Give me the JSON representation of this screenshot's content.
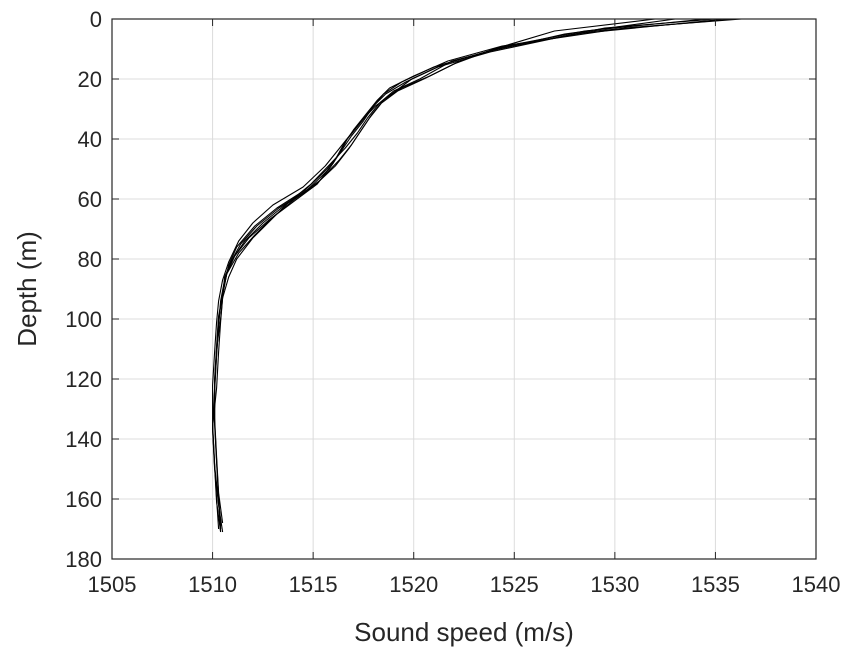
{
  "chart_data": {
    "type": "line",
    "xlabel": "Sound speed (m/s)",
    "ylabel": "Depth (m)",
    "xlim": [
      1505,
      1540
    ],
    "ylim": [
      0,
      180
    ],
    "y_reversed": true,
    "grid": true,
    "xticks": [
      "1505",
      "1510",
      "1515",
      "1520",
      "1525",
      "1530",
      "1535",
      "1540"
    ],
    "yticks": [
      "0",
      "20",
      "40",
      "60",
      "80",
      "100",
      "120",
      "140",
      "160",
      "180"
    ],
    "line_color": "#000000",
    "series": [
      {
        "x": [
          1536.3,
          1530.5,
          1524.4,
          1521.7,
          1520.0,
          1518.8,
          1518.2,
          1517.6,
          1517.0,
          1516.5,
          1516.0,
          1515.2,
          1514.0,
          1512.8,
          1511.8,
          1511.1,
          1510.7,
          1510.5,
          1510.3,
          1510.2,
          1510.1,
          1510.1,
          1510.2,
          1510.3,
          1510.4
        ],
        "y": [
          0,
          3,
          9,
          14,
          19,
          23,
          27,
          32,
          37,
          42,
          48,
          55,
          61,
          67,
          73,
          79,
          85,
          92,
          100,
          110,
          122,
          135,
          148,
          160,
          170
        ]
      },
      {
        "x": [
          1536.0,
          1529.0,
          1524.0,
          1522.0,
          1520.5,
          1519.2,
          1518.4,
          1517.8,
          1517.3,
          1516.8,
          1516.1,
          1515.0,
          1513.6,
          1512.5,
          1511.6,
          1511.0,
          1510.6,
          1510.5,
          1510.4,
          1510.3,
          1510.2,
          1510.0,
          1510.1,
          1510.2,
          1510.4
        ],
        "y": [
          0,
          4,
          10,
          15,
          20,
          24,
          28,
          33,
          38,
          43,
          49,
          56,
          62,
          68,
          74,
          80,
          86,
          93,
          101,
          111,
          123,
          136,
          149,
          161,
          171
        ]
      },
      {
        "x": [
          1535.5,
          1528.0,
          1523.8,
          1521.2,
          1519.6,
          1518.6,
          1518.0,
          1517.5,
          1516.9,
          1516.4,
          1515.8,
          1514.7,
          1513.3,
          1512.2,
          1511.4,
          1510.9,
          1510.6,
          1510.4,
          1510.3,
          1510.2,
          1510.1,
          1510.0,
          1510.1,
          1510.3,
          1510.5
        ],
        "y": [
          0,
          5,
          11,
          16,
          21,
          25,
          29,
          34,
          39,
          44,
          50,
          57,
          63,
          69,
          75,
          81,
          87,
          94,
          102,
          112,
          124,
          137,
          150,
          162,
          171
        ]
      },
      {
        "x": [
          1535.0,
          1529.5,
          1524.2,
          1521.9,
          1520.3,
          1519.0,
          1518.3,
          1517.7,
          1517.2,
          1516.6,
          1515.9,
          1514.9,
          1513.8,
          1512.9,
          1512.0,
          1511.2,
          1510.8,
          1510.5,
          1510.4,
          1510.2,
          1510.1,
          1510.1,
          1510.2,
          1510.3,
          1510.4
        ],
        "y": [
          0,
          3,
          10,
          14,
          20,
          24,
          28,
          33,
          38,
          43,
          48,
          55,
          61,
          67,
          73,
          80,
          86,
          93,
          100,
          110,
          121,
          134,
          147,
          159,
          169
        ]
      },
      {
        "x": [
          1534.5,
          1528.5,
          1524.6,
          1521.5,
          1519.9,
          1518.9,
          1518.1,
          1517.4,
          1516.8,
          1516.2,
          1515.6,
          1514.5,
          1513.0,
          1512.0,
          1511.3,
          1510.8,
          1510.5,
          1510.3,
          1510.2,
          1510.1,
          1510.0,
          1510.0,
          1510.1,
          1510.2,
          1510.3
        ],
        "y": [
          0,
          4,
          9,
          15,
          20,
          25,
          29,
          34,
          39,
          44,
          49,
          56,
          62,
          68,
          74,
          81,
          87,
          94,
          101,
          111,
          122,
          135,
          148,
          160,
          170
        ]
      },
      {
        "x": [
          1533.0,
          1527.5,
          1523.6,
          1521.0,
          1519.4,
          1518.5,
          1517.9,
          1517.3,
          1516.7,
          1516.3,
          1515.7,
          1514.6,
          1513.2,
          1512.1,
          1511.2,
          1510.8,
          1510.6,
          1510.4,
          1510.3,
          1510.2,
          1510.1,
          1510.0,
          1510.1,
          1510.3,
          1510.4
        ],
        "y": [
          0,
          5,
          11,
          16,
          21,
          25,
          30,
          35,
          40,
          45,
          50,
          57,
          63,
          69,
          76,
          82,
          88,
          95,
          102,
          112,
          123,
          136,
          149,
          161,
          171
        ]
      },
      {
        "x": [
          1532.0,
          1527.0,
          1524.0,
          1522.3,
          1520.8,
          1519.4,
          1518.5,
          1517.9,
          1517.4,
          1516.9,
          1516.3,
          1515.3,
          1514.1,
          1513.0,
          1512.1,
          1511.3,
          1510.7,
          1510.5,
          1510.3,
          1510.2,
          1510.1,
          1510.1,
          1510.2,
          1510.3,
          1510.5
        ],
        "y": [
          0,
          4,
          10,
          14,
          19,
          23,
          27,
          32,
          37,
          42,
          47,
          54,
          60,
          66,
          72,
          78,
          85,
          92,
          99,
          109,
          120,
          133,
          146,
          158,
          168
        ]
      }
    ]
  }
}
